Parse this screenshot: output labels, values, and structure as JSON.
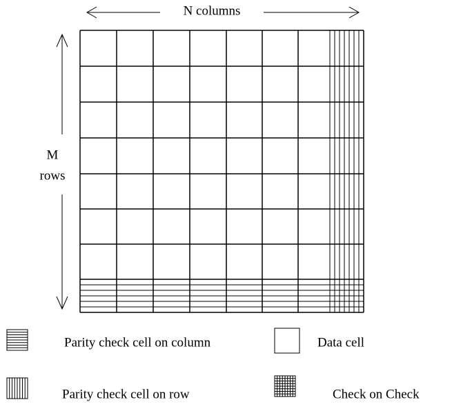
{
  "axes": {
    "columns": "N columns",
    "rows_line1": "M",
    "rows_line2": "rows"
  },
  "legend": [
    {
      "label": "Parity check cell on column"
    },
    {
      "label": "Data cell"
    },
    {
      "label": "Parity check cell on row"
    },
    {
      "label": "Check on Check"
    }
  ]
}
